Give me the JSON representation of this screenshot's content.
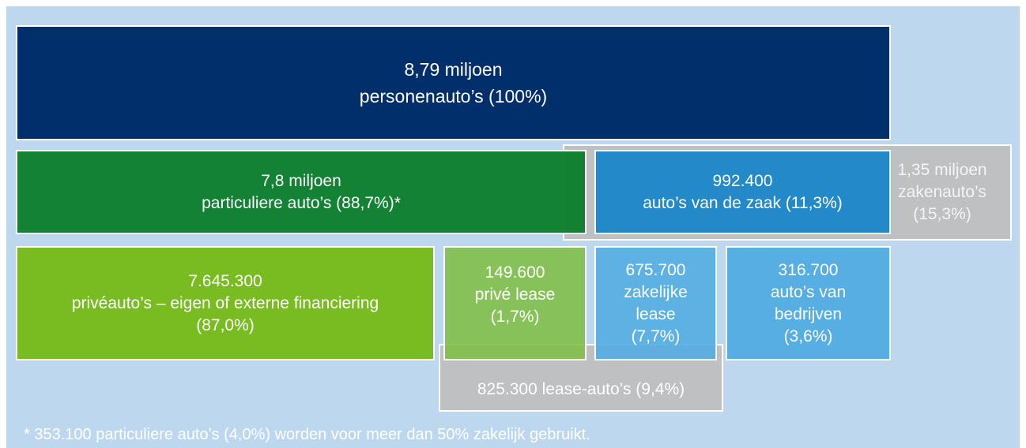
{
  "boxes": [
    {
      "lines": [
        "1,35 miljoen",
        "zakenauto’s",
        "(15,3%)"
      ]
    },
    {
      "lines": [
        "825.300 lease-auto’s (9,4%)"
      ]
    },
    {
      "lines": [
        "8,79 miljoen",
        "personenauto’s  (100%)"
      ]
    },
    {
      "lines": [
        "7,8 miljoen",
        "particuliere auto’s (88,7%)*"
      ]
    },
    {
      "lines": [
        "992.400",
        "auto’s van de zaak (11,3%)"
      ]
    },
    {
      "lines": [
        "7.645.300",
        "privéauto’s –  eigen of externe financiering",
        "(87,0%)"
      ]
    },
    {
      "lines": [
        "149.600",
        "privé lease",
        "(1,7%)"
      ]
    },
    {
      "lines": [
        "675.700",
        "zakelijke",
        "lease",
        "(7,7%)"
      ]
    },
    {
      "lines": [
        "316.700",
        "auto’s van",
        "bedrijven",
        "(3,6%)"
      ]
    }
  ],
  "footnote": "* 353.100 particuliere auto’s (4,0%) worden voor meer dan 50% zakelijk gebruikt."
}
